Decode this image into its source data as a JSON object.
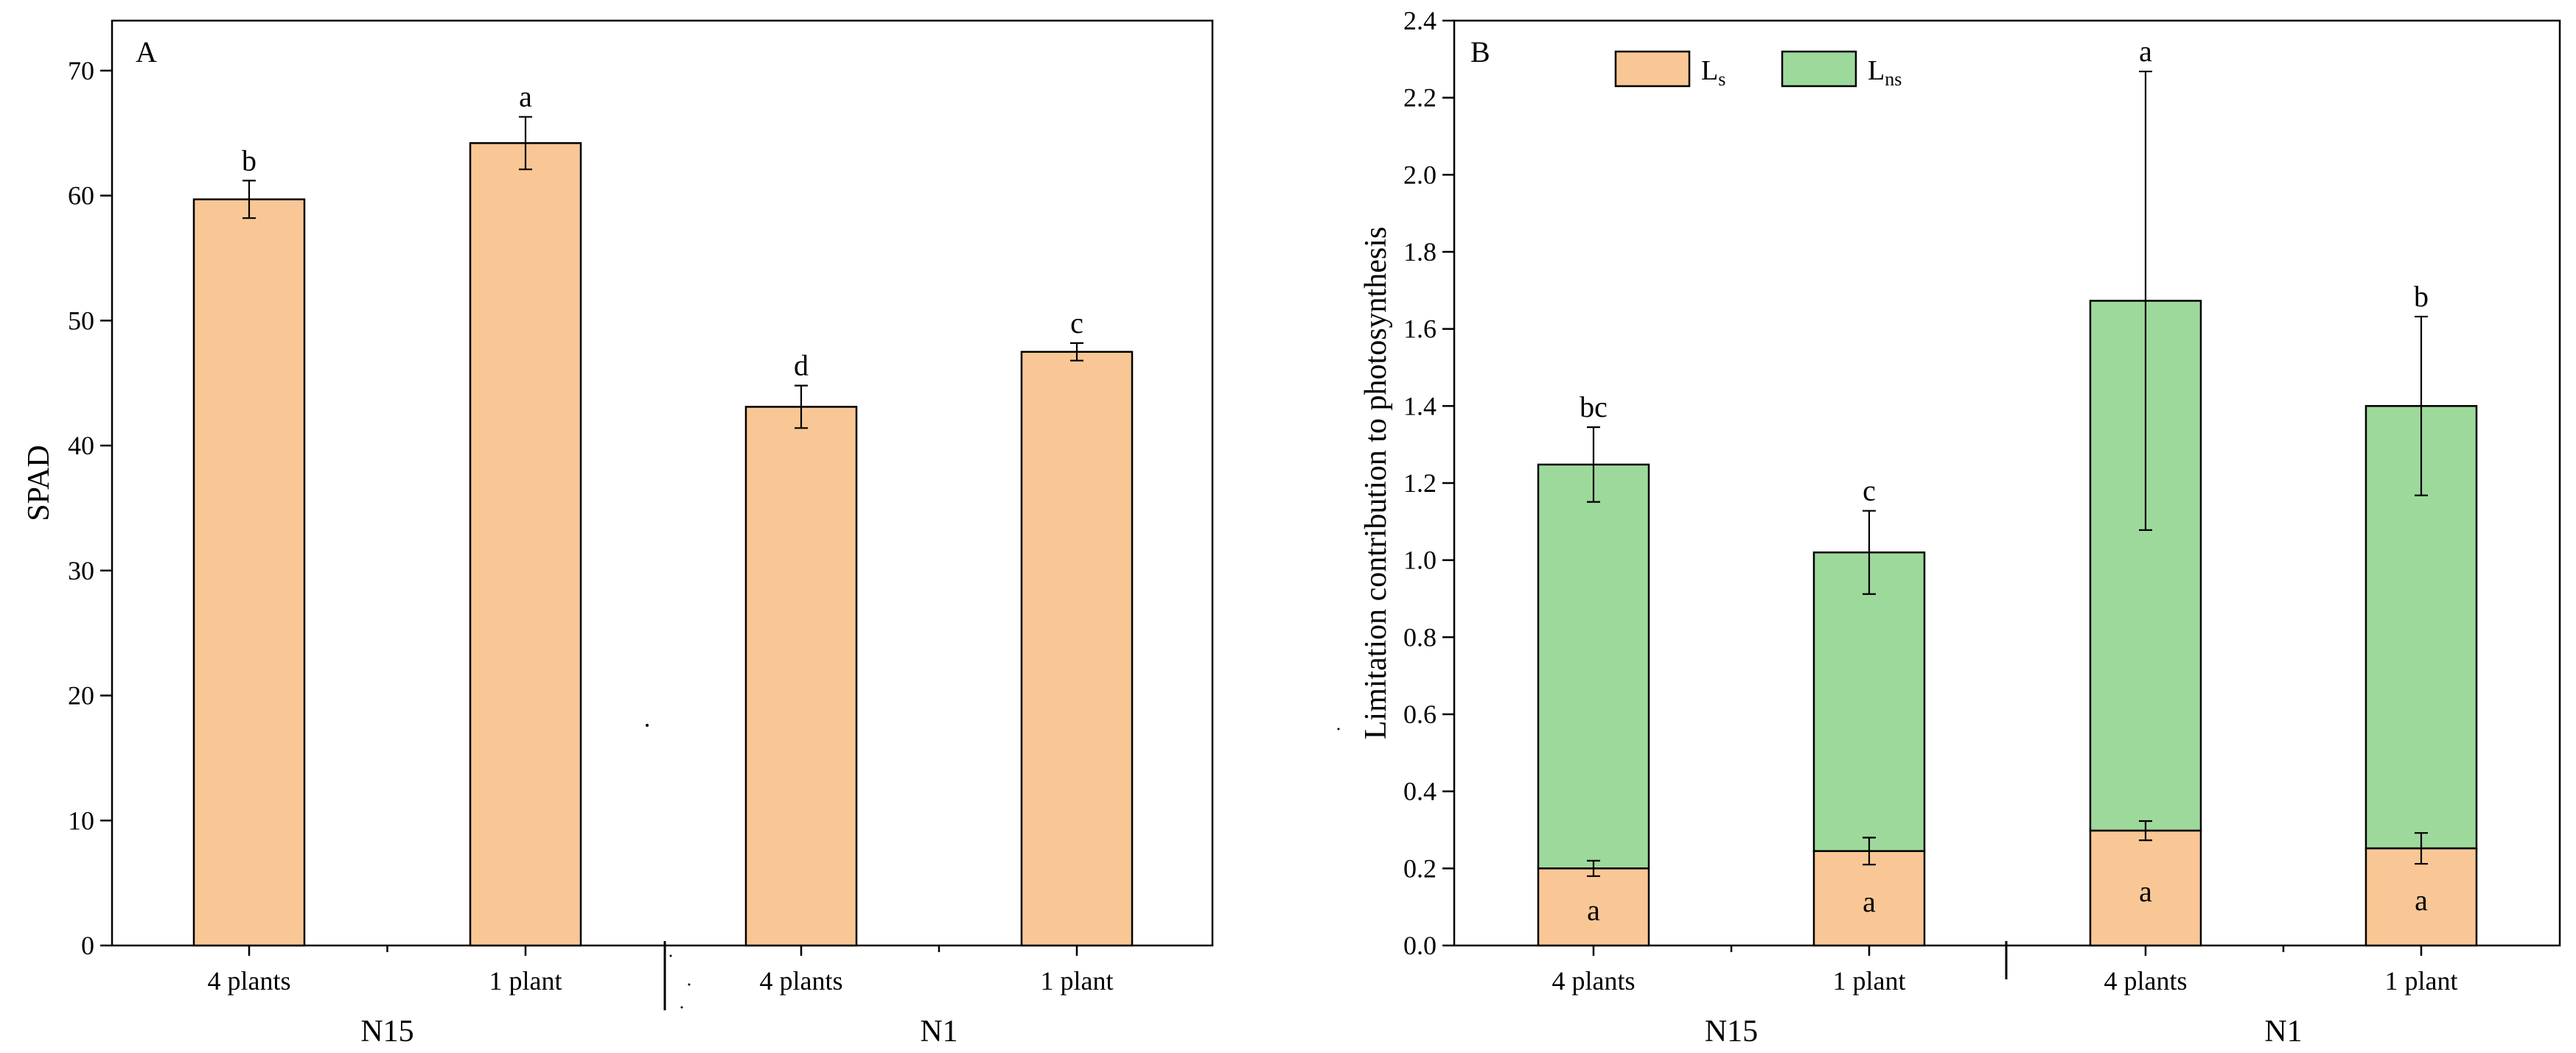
{
  "colors": {
    "ls": "#F9C795",
    "lns": "#9ED99C",
    "axis": "#000000"
  },
  "chart_data": [
    {
      "panel": "A",
      "type": "bar",
      "ylabel": "SPAD",
      "ylim": [
        0,
        74
      ],
      "yticks": [
        0,
        10,
        20,
        30,
        40,
        50,
        60,
        70
      ],
      "categories": [
        "4 plants",
        "1 plant",
        "4 plants",
        "1 plant"
      ],
      "groups": [
        {
          "label": "N15",
          "categories": [
            0,
            1
          ]
        },
        {
          "label": "N1",
          "categories": [
            2,
            3
          ]
        }
      ],
      "series": [
        {
          "name": "SPAD",
          "values": [
            59.7,
            64.2,
            43.1,
            47.5
          ],
          "errors": [
            1.5,
            2.1,
            1.7,
            0.7
          ],
          "labels": [
            "b",
            "a",
            "d",
            "c"
          ]
        }
      ]
    },
    {
      "panel": "B",
      "type": "bar",
      "stacked": true,
      "ylabel": "Limitation contribution to photosynthesis",
      "ylim": [
        0,
        2.4
      ],
      "yticks": [
        "0.0",
        "0.2",
        "0.4",
        "0.6",
        "0.8",
        "1.0",
        "1.2",
        "1.4",
        "1.6",
        "1.8",
        "2.0",
        "2.2",
        "2.4"
      ],
      "categories": [
        "4 plants",
        "1 plant",
        "4 plants",
        "1 plant"
      ],
      "groups": [
        {
          "label": "N15",
          "categories": [
            0,
            1
          ]
        },
        {
          "label": "N1",
          "categories": [
            2,
            3
          ]
        }
      ],
      "legend": {
        "placement": "top-left",
        "entries": [
          {
            "main": "L",
            "sub": "s"
          },
          {
            "main": "L",
            "sub": "ns"
          }
        ]
      },
      "series": [
        {
          "name": "Ls",
          "values": [
            0.2,
            0.245,
            0.298,
            0.252
          ],
          "errors": [
            0.02,
            0.035,
            0.025,
            0.04
          ],
          "labels": [
            "a",
            "a",
            "a",
            "a"
          ]
        },
        {
          "name": "Lns",
          "values": [
            1.048,
            0.775,
            1.375,
            1.148
          ],
          "totals": [
            1.248,
            1.02,
            1.673,
            1.4
          ],
          "errors": [
            0.097,
            0.108,
            0.595,
            0.232
          ],
          "labels": [
            "bc",
            "c",
            "a",
            "b"
          ]
        }
      ]
    }
  ]
}
